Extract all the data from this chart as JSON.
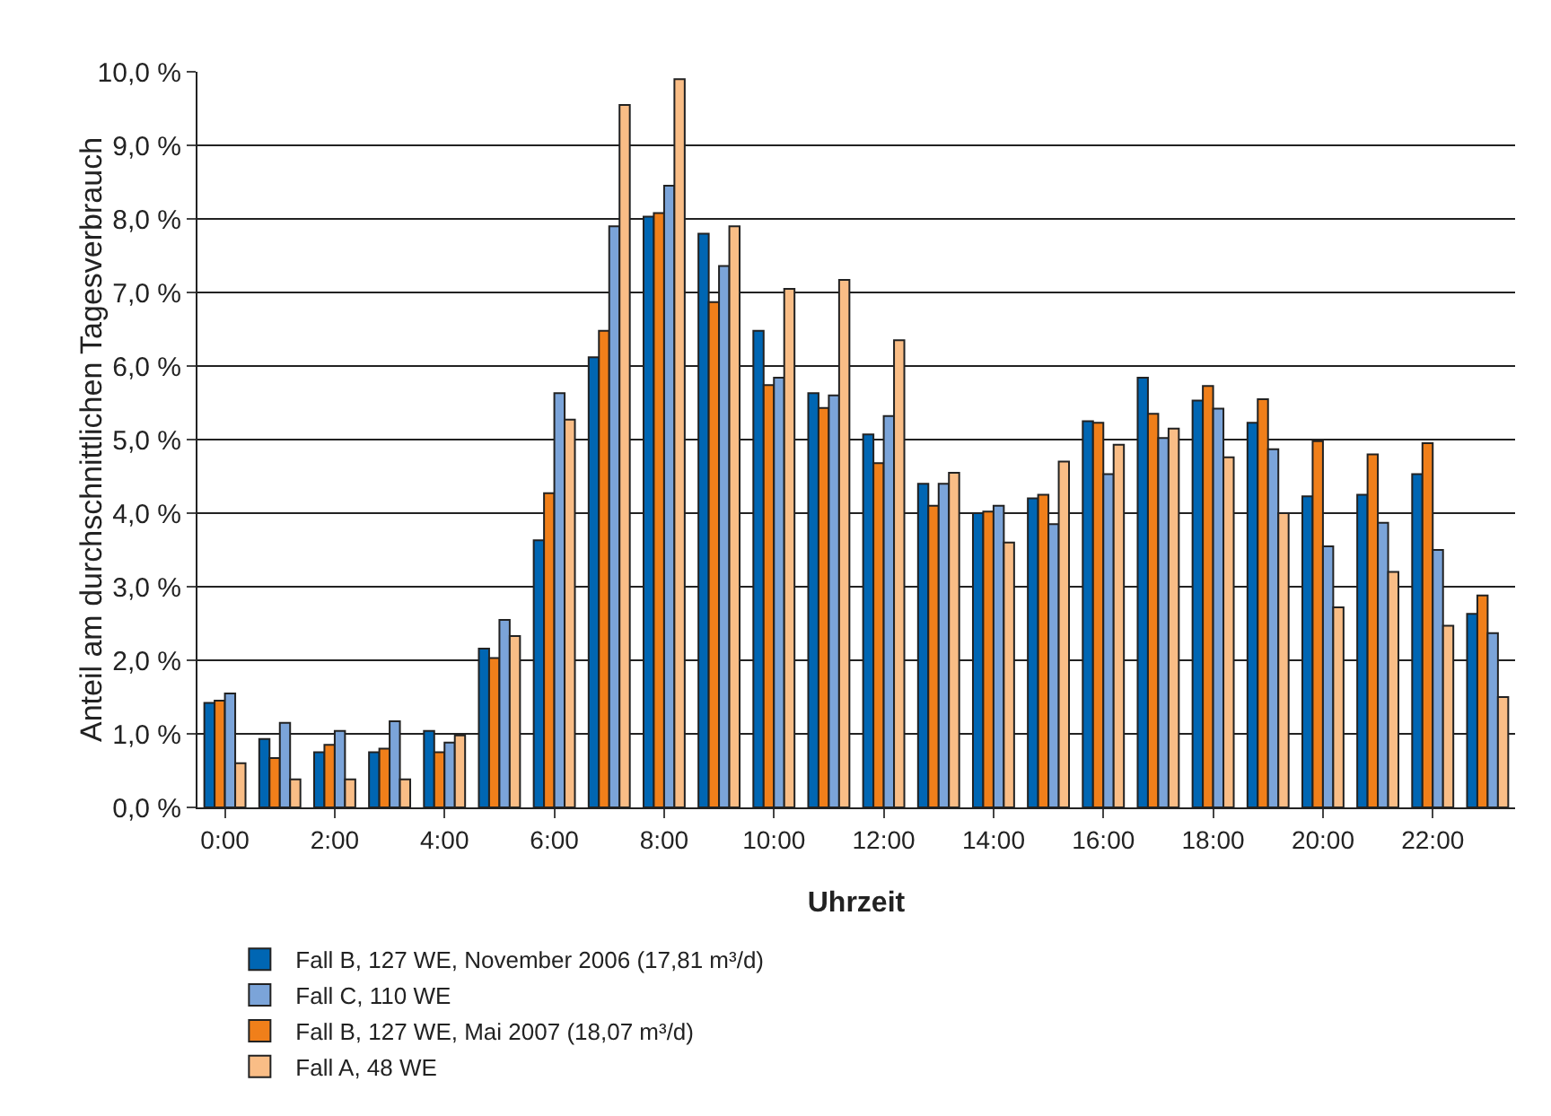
{
  "chart_data": {
    "type": "bar",
    "xlabel": "Uhrzeit",
    "ylabel": "Anteil am durchschnittlichen Tagesverbrauch",
    "categories": [
      "0:00",
      null,
      "2:00",
      null,
      "4:00",
      null,
      "6:00",
      null,
      "8:00",
      null,
      "10:00",
      null,
      "12:00",
      null,
      "14:00",
      null,
      "16:00",
      null,
      "18:00",
      null,
      "20:00",
      null,
      "22:00",
      null
    ],
    "series": [
      {
        "name": "Fall B, 127 WE, November 2006 (17,81 m³/d)",
        "color": "#0066b3",
        "values": [
          1.42,
          0.93,
          0.75,
          0.75,
          1.04,
          2.16,
          3.63,
          6.12,
          8.03,
          7.8,
          6.48,
          5.63,
          5.07,
          4.4,
          4.0,
          4.2,
          5.25,
          5.84,
          5.53,
          5.23,
          4.23,
          4.25,
          4.53,
          2.63
        ]
      },
      {
        "name": "Fall B, 127 WE, Mai 2007 (18,07 m³/d)",
        "color": "#f07f1a",
        "values": [
          1.45,
          0.67,
          0.85,
          0.8,
          0.75,
          2.03,
          4.27,
          6.48,
          8.08,
          6.87,
          5.74,
          5.43,
          4.68,
          4.1,
          4.02,
          4.25,
          5.23,
          5.35,
          5.73,
          5.55,
          4.98,
          4.8,
          4.95,
          2.88
        ]
      },
      {
        "name": "Fall C, 110 WE",
        "color": "#7ba4d9",
        "values": [
          1.55,
          1.15,
          1.04,
          1.17,
          0.88,
          2.55,
          5.63,
          7.9,
          8.45,
          7.36,
          5.84,
          5.6,
          5.32,
          4.4,
          4.1,
          3.85,
          4.53,
          5.02,
          5.42,
          4.87,
          3.55,
          3.87,
          3.5,
          2.37
        ]
      },
      {
        "name": "Fall A, 48 WE",
        "color": "#f9bd86",
        "values": [
          0.6,
          0.38,
          0.38,
          0.38,
          0.98,
          2.33,
          5.27,
          9.55,
          9.9,
          7.9,
          7.05,
          7.17,
          6.35,
          4.55,
          3.6,
          4.7,
          4.93,
          5.15,
          4.76,
          4.0,
          2.72,
          3.2,
          2.47,
          1.5
        ]
      }
    ],
    "ylim": [
      0,
      10
    ],
    "yticks": [
      {
        "value": 0,
        "label": "0,0 %"
      },
      {
        "value": 1,
        "label": "1,0 %"
      },
      {
        "value": 2,
        "label": "2,0 %"
      },
      {
        "value": 3,
        "label": "3,0 %"
      },
      {
        "value": 4,
        "label": "4,0 %"
      },
      {
        "value": 5,
        "label": "5,0 %"
      },
      {
        "value": 6,
        "label": "6,0 %"
      },
      {
        "value": 7,
        "label": "7,0 %"
      },
      {
        "value": 8,
        "label": "8,0 %"
      },
      {
        "value": 9,
        "label": "9,0 %"
      },
      {
        "value": 10,
        "label": "10,0 %"
      }
    ],
    "grid": "y",
    "legend": "bottom"
  }
}
